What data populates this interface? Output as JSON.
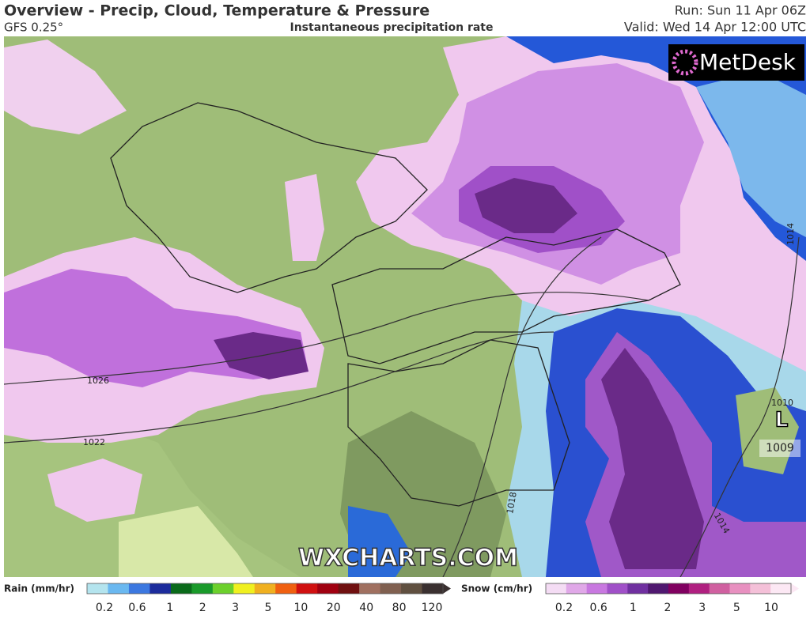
{
  "header": {
    "title": "Overview - Precip, Cloud, Temperature & Pressure",
    "model": "GFS 0.25°",
    "subtitle": "Instantaneous precipitation rate",
    "run": "Run: Sun 11 Apr 06Z",
    "valid": "Valid: Wed 14 Apr 12:00 UTC"
  },
  "brand": "MetDesk",
  "watermark": "WXCHARTS.COM",
  "isobar_labels": [
    "1026",
    "1022",
    "1018",
    "1014",
    "1014",
    "1010"
  ],
  "low": {
    "symbol": "L",
    "pressure": "1009"
  },
  "legend": {
    "rain": {
      "title": "Rain (mm/hr)",
      "labels": [
        "0.2",
        "0.6",
        "1",
        "2",
        "3",
        "5",
        "10",
        "20",
        "40",
        "80",
        "120"
      ],
      "colors": [
        "#b4e4ee",
        "#6ab8f0",
        "#3c78e0",
        "#1c2c9c",
        "#0a6a1a",
        "#1a9a2a",
        "#6cd02c",
        "#f0f020",
        "#f0b020",
        "#f06010",
        "#d01010",
        "#a00010",
        "#701010",
        "#a07060",
        "#806050",
        "#605040",
        "#3a3030"
      ]
    },
    "snow": {
      "title": "Snow (cm/hr)",
      "labels": [
        "0.2",
        "0.6",
        "1",
        "2",
        "3",
        "5",
        "10"
      ],
      "colors": [
        "#f4dcf4",
        "#e0a8e8",
        "#c878e0",
        "#a050c8",
        "#7030a0",
        "#501870",
        "#800060",
        "#b02080",
        "#d060a0",
        "#e890c0",
        "#f4c0d8",
        "#fce8f4"
      ]
    }
  }
}
